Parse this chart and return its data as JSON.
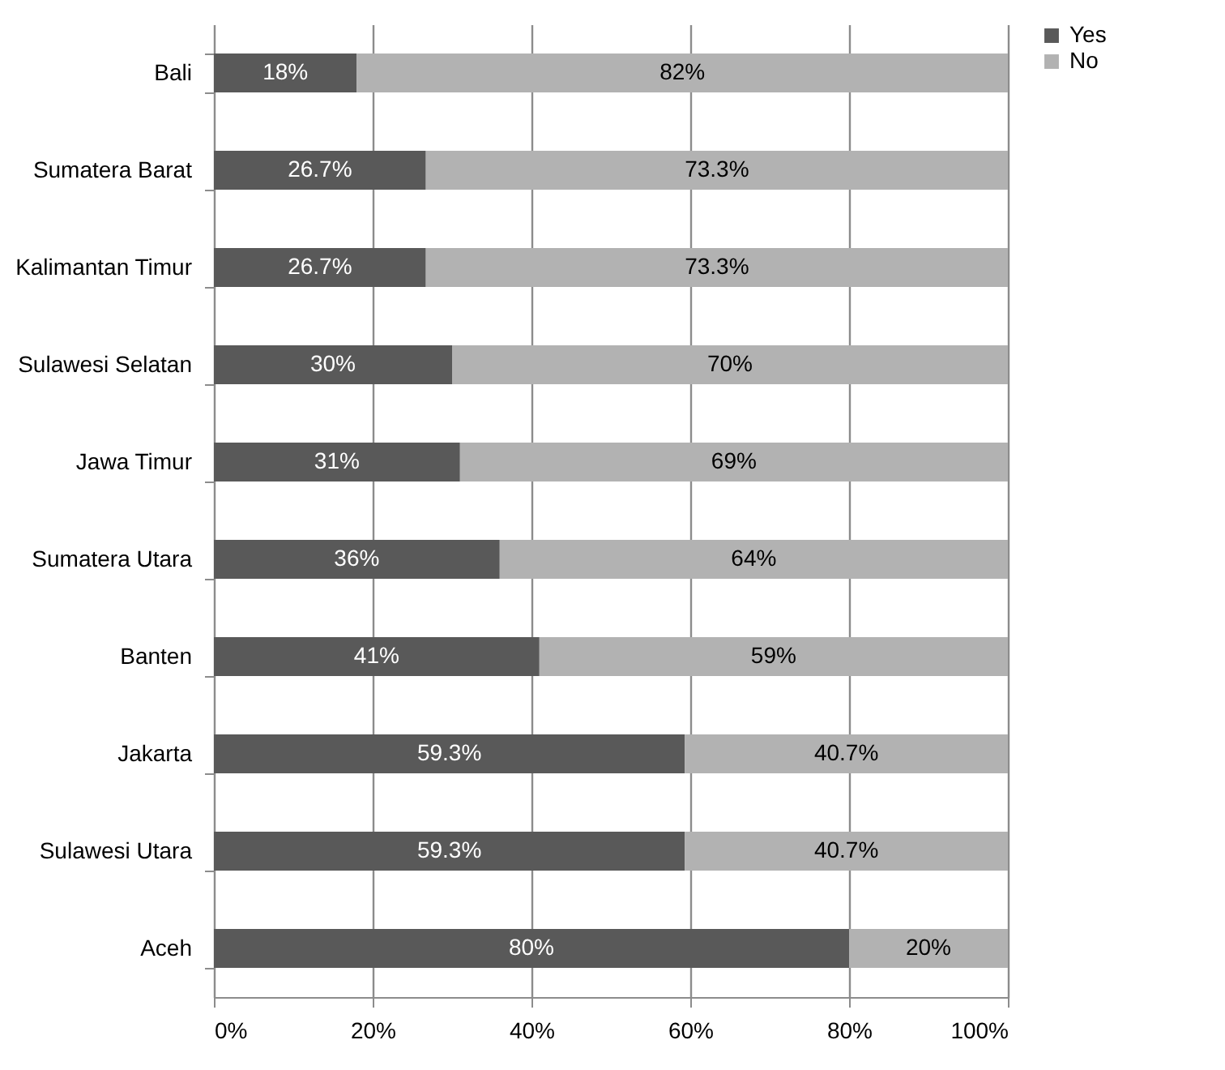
{
  "chart_data": {
    "type": "bar",
    "orientation": "horizontal",
    "stacked": true,
    "categories": [
      "Bali",
      "Sumatera Barat",
      "Kalimantan Timur",
      "Sulawesi Selatan",
      "Jawa Timur",
      "Sumatera Utara",
      "Banten",
      "Jakarta",
      "Sulawesi Utara",
      "Aceh"
    ],
    "series": [
      {
        "name": "Yes",
        "color": "#595959",
        "values": [
          18,
          26.7,
          26.7,
          30,
          31,
          36,
          41,
          59.3,
          59.3,
          80
        ],
        "value_labels": [
          "18%",
          "26.7%",
          "26.7%",
          "30%",
          "31%",
          "36%",
          "41%",
          "59.3%",
          "59.3%",
          "80%"
        ]
      },
      {
        "name": "No",
        "color": "#b2b2b2",
        "values": [
          82,
          73.3,
          73.3,
          70,
          69,
          64,
          59,
          40.7,
          40.7,
          20
        ],
        "value_labels": [
          "82%",
          "73.3%",
          "73.3%",
          "70%",
          "69%",
          "64%",
          "59%",
          "40.7%",
          "40.7%",
          "20%"
        ]
      }
    ],
    "xlim": [
      0,
      100
    ],
    "xticks": [
      {
        "value": 0,
        "label": "0%"
      },
      {
        "value": 20,
        "label": "20%"
      },
      {
        "value": 40,
        "label": "40%"
      },
      {
        "value": 60,
        "label": "60%"
      },
      {
        "value": 80,
        "label": "80%"
      },
      {
        "value": 100,
        "label": "100%"
      }
    ],
    "grid": "x",
    "legend": "right"
  }
}
